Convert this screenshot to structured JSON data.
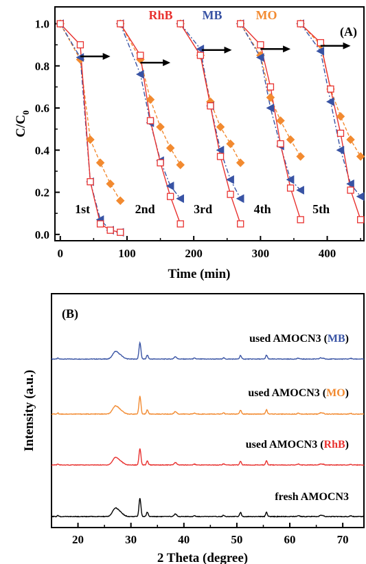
{
  "chart_data": [
    {
      "panel": "(A)",
      "type": "line",
      "xlabel": "Time (min)",
      "ylabel": "C/C0",
      "xlim": [
        -8,
        455
      ],
      "ylim": [
        -0.03,
        1.08
      ],
      "xticks": [
        0,
        100,
        200,
        300,
        400
      ],
      "yticks": [
        0.0,
        0.2,
        0.4,
        0.6,
        0.8,
        1.0
      ],
      "ytick_labels": [
        "0.0",
        "0.2",
        "0.4",
        "0.6",
        "0.8",
        "1.0"
      ],
      "legend": {
        "placement": "top-center",
        "entries": [
          {
            "label": "RhB",
            "color": "#e8312f"
          },
          {
            "label": "MB",
            "color": "#3853a4"
          },
          {
            "label": "MO",
            "color": "#f28a30"
          }
        ]
      },
      "cycle_labels": [
        {
          "text": "1st",
          "x": 22,
          "y": 0.12
        },
        {
          "text": "2nd",
          "x": 112,
          "y": 0.12
        },
        {
          "text": "3rd",
          "x": 200,
          "y": 0.12
        },
        {
          "text": "4th",
          "x": 290,
          "y": 0.12
        },
        {
          "text": "5th",
          "x": 378,
          "y": 0.12
        }
      ],
      "arrows": [
        {
          "x_start": 30,
          "x_end": 75,
          "y": 0.845
        },
        {
          "x_start": 120,
          "x_end": 165,
          "y": 0.815
        },
        {
          "x_start": 212,
          "x_end": 257,
          "y": 0.875
        },
        {
          "x_start": 300,
          "x_end": 345,
          "y": 0.88
        },
        {
          "x_start": 390,
          "x_end": 435,
          "y": 0.895
        }
      ],
      "series": [
        {
          "name": "RhB",
          "color": "#e8312f",
          "marker": "open-square",
          "line": "solid",
          "cycles": [
            {
              "x": [
                0,
                30,
                45,
                60,
                75,
                90
              ],
              "y": [
                1.0,
                0.9,
                0.25,
                0.05,
                0.02,
                0.01
              ]
            },
            {
              "x": [
                90,
                120,
                135,
                150,
                165,
                180
              ],
              "y": [
                1.0,
                0.85,
                0.54,
                0.34,
                0.18,
                0.05
              ]
            },
            {
              "x": [
                180,
                210,
                225,
                240,
                255,
                270
              ],
              "y": [
                1.0,
                0.85,
                0.61,
                0.37,
                0.19,
                0.05
              ]
            },
            {
              "x": [
                270,
                300,
                315,
                330,
                345,
                360
              ],
              "y": [
                1.0,
                0.9,
                0.7,
                0.43,
                0.22,
                0.07
              ]
            },
            {
              "x": [
                360,
                390,
                405,
                420,
                435,
                450
              ],
              "y": [
                1.0,
                0.91,
                0.69,
                0.48,
                0.21,
                0.07
              ]
            }
          ]
        },
        {
          "name": "MB",
          "color": "#3853a4",
          "marker": "left-triangle",
          "line": "dash-dot",
          "cycles": [
            {
              "x": [
                0,
                30,
                45,
                60,
                75,
                90
              ],
              "y": [
                1.0,
                0.84,
                0.25,
                0.07,
                0.02,
                0.01
              ]
            },
            {
              "x": [
                90,
                120,
                135,
                150,
                165,
                180
              ],
              "y": [
                1.0,
                0.76,
                0.53,
                0.35,
                0.23,
                0.17
              ]
            },
            {
              "x": [
                180,
                210,
                225,
                240,
                255,
                270
              ],
              "y": [
                1.0,
                0.88,
                0.61,
                0.4,
                0.26,
                0.17
              ]
            },
            {
              "x": [
                270,
                300,
                315,
                330,
                345,
                360
              ],
              "y": [
                1.0,
                0.84,
                0.6,
                0.42,
                0.26,
                0.21
              ]
            },
            {
              "x": [
                360,
                390,
                405,
                420,
                435,
                450
              ],
              "y": [
                1.0,
                0.87,
                0.63,
                0.4,
                0.24,
                0.18
              ]
            }
          ]
        },
        {
          "name": "MO",
          "color": "#f28a30",
          "marker": "diamond",
          "line": "dashed",
          "cycles": [
            {
              "x": [
                0,
                30,
                45,
                60,
                75,
                90
              ],
              "y": [
                1.0,
                0.83,
                0.45,
                0.34,
                0.24,
                0.16
              ]
            },
            {
              "x": [
                90,
                120,
                135,
                150,
                165,
                180
              ],
              "y": [
                1.0,
                0.83,
                0.64,
                0.51,
                0.41,
                0.33
              ]
            },
            {
              "x": [
                180,
                210,
                225,
                240,
                255,
                270
              ],
              "y": [
                1.0,
                0.85,
                0.63,
                0.51,
                0.43,
                0.34
              ]
            },
            {
              "x": [
                270,
                300,
                315,
                330,
                345,
                360
              ],
              "y": [
                1.0,
                0.85,
                0.65,
                0.54,
                0.45,
                0.37
              ]
            },
            {
              "x": [
                360,
                390,
                405,
                420,
                435,
                450
              ],
              "y": [
                1.0,
                0.9,
                0.69,
                0.56,
                0.45,
                0.37
              ]
            }
          ]
        }
      ]
    },
    {
      "panel": "(B)",
      "type": "line",
      "xlabel": "2 Theta (degree)",
      "ylabel": "Intensity (a.u.)",
      "xlim": [
        15,
        74
      ],
      "xticks": [
        20,
        30,
        40,
        50,
        60,
        70
      ],
      "peaks": [
        {
          "x": 16.2,
          "h": 0.06,
          "w": 0.12
        },
        {
          "x": 27.0,
          "h": 0.38,
          "w": 0.5
        },
        {
          "x": 27.9,
          "h": 0.22,
          "w": 0.6
        },
        {
          "x": 31.7,
          "h": 1.0,
          "w": 0.18
        },
        {
          "x": 33.1,
          "h": 0.24,
          "w": 0.16
        },
        {
          "x": 38.4,
          "h": 0.14,
          "w": 0.25
        },
        {
          "x": 42.0,
          "h": 0.05,
          "w": 0.2
        },
        {
          "x": 47.5,
          "h": 0.07,
          "w": 0.18
        },
        {
          "x": 50.7,
          "h": 0.22,
          "w": 0.16
        },
        {
          "x": 55.6,
          "h": 0.24,
          "w": 0.16
        },
        {
          "x": 61.6,
          "h": 0.05,
          "w": 0.2
        },
        {
          "x": 65.8,
          "h": 0.07,
          "w": 0.2
        },
        {
          "x": 66.3,
          "h": 0.05,
          "w": 0.18
        },
        {
          "x": 71.5,
          "h": 0.04,
          "w": 0.2
        }
      ],
      "traces": [
        {
          "name": "used AMOCN3 (MB)",
          "prefix": "used AMOCN3 (",
          "sample": "MB",
          "suffix": ")",
          "color": "#3853a4",
          "sample_color": "#3853a4"
        },
        {
          "name": "used AMOCN3 (MO)",
          "prefix": "used AMOCN3 (",
          "sample": "MO",
          "suffix": ")",
          "color": "#f28a30",
          "sample_color": "#f28a30"
        },
        {
          "name": "used AMOCN3 (RhB)",
          "prefix": "used AMOCN3 (",
          "sample": "RhB",
          "suffix": ")",
          "color": "#e8312f",
          "sample_color": "#e8312f"
        },
        {
          "name": "fresh AMOCN3",
          "prefix": "fresh AMOCN3",
          "sample": "",
          "suffix": "",
          "color": "#000000",
          "sample_color": "#000000"
        }
      ]
    }
  ]
}
